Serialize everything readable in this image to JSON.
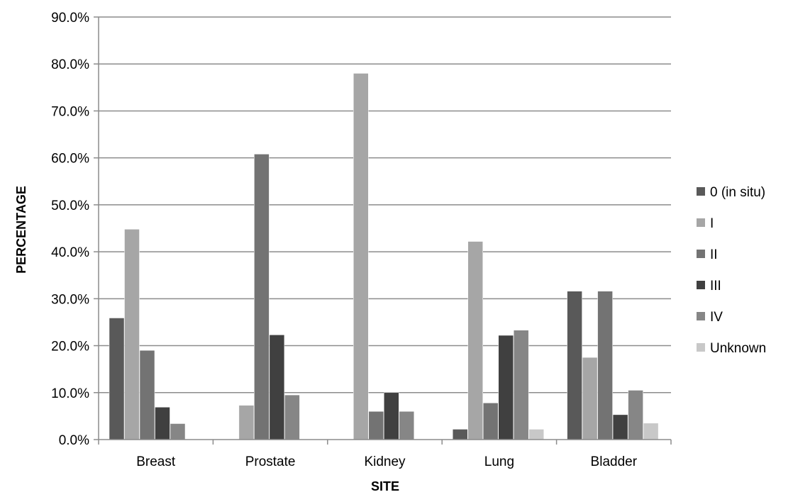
{
  "chart_data": {
    "type": "bar",
    "title": "",
    "xlabel": "SITE",
    "ylabel": "PERCENTAGE",
    "ylim": [
      0,
      90
    ],
    "y_ticks": [
      0,
      10,
      20,
      30,
      40,
      50,
      60,
      70,
      80,
      90
    ],
    "y_tick_labels": [
      "0.0%",
      "10.0%",
      "20.0%",
      "30.0%",
      "40.0%",
      "50.0%",
      "60.0%",
      "70.0%",
      "80.0%",
      "90.0%"
    ],
    "grid": true,
    "legend_position": "right",
    "categories": [
      "Breast",
      "Prostate",
      "Kidney",
      "Lung",
      "Bladder"
    ],
    "series": [
      {
        "name": "0 (in situ)",
        "color": "#595959",
        "values": [
          25.9,
          0,
          0,
          2.2,
          31.6
        ]
      },
      {
        "name": "I",
        "color": "#a6a6a6",
        "values": [
          44.8,
          7.3,
          78.0,
          42.2,
          17.5
        ]
      },
      {
        "name": "II",
        "color": "#737373",
        "values": [
          19.0,
          60.8,
          6.0,
          7.8,
          31.6
        ]
      },
      {
        "name": "III",
        "color": "#404040",
        "values": [
          6.9,
          22.3,
          10.0,
          22.2,
          5.3
        ]
      },
      {
        "name": "IV",
        "color": "#868686",
        "values": [
          3.4,
          9.5,
          6.0,
          23.3,
          10.5
        ]
      },
      {
        "name": "Unknown",
        "color": "#c8c8c8",
        "values": [
          0,
          0,
          0,
          2.2,
          3.5
        ]
      }
    ]
  }
}
